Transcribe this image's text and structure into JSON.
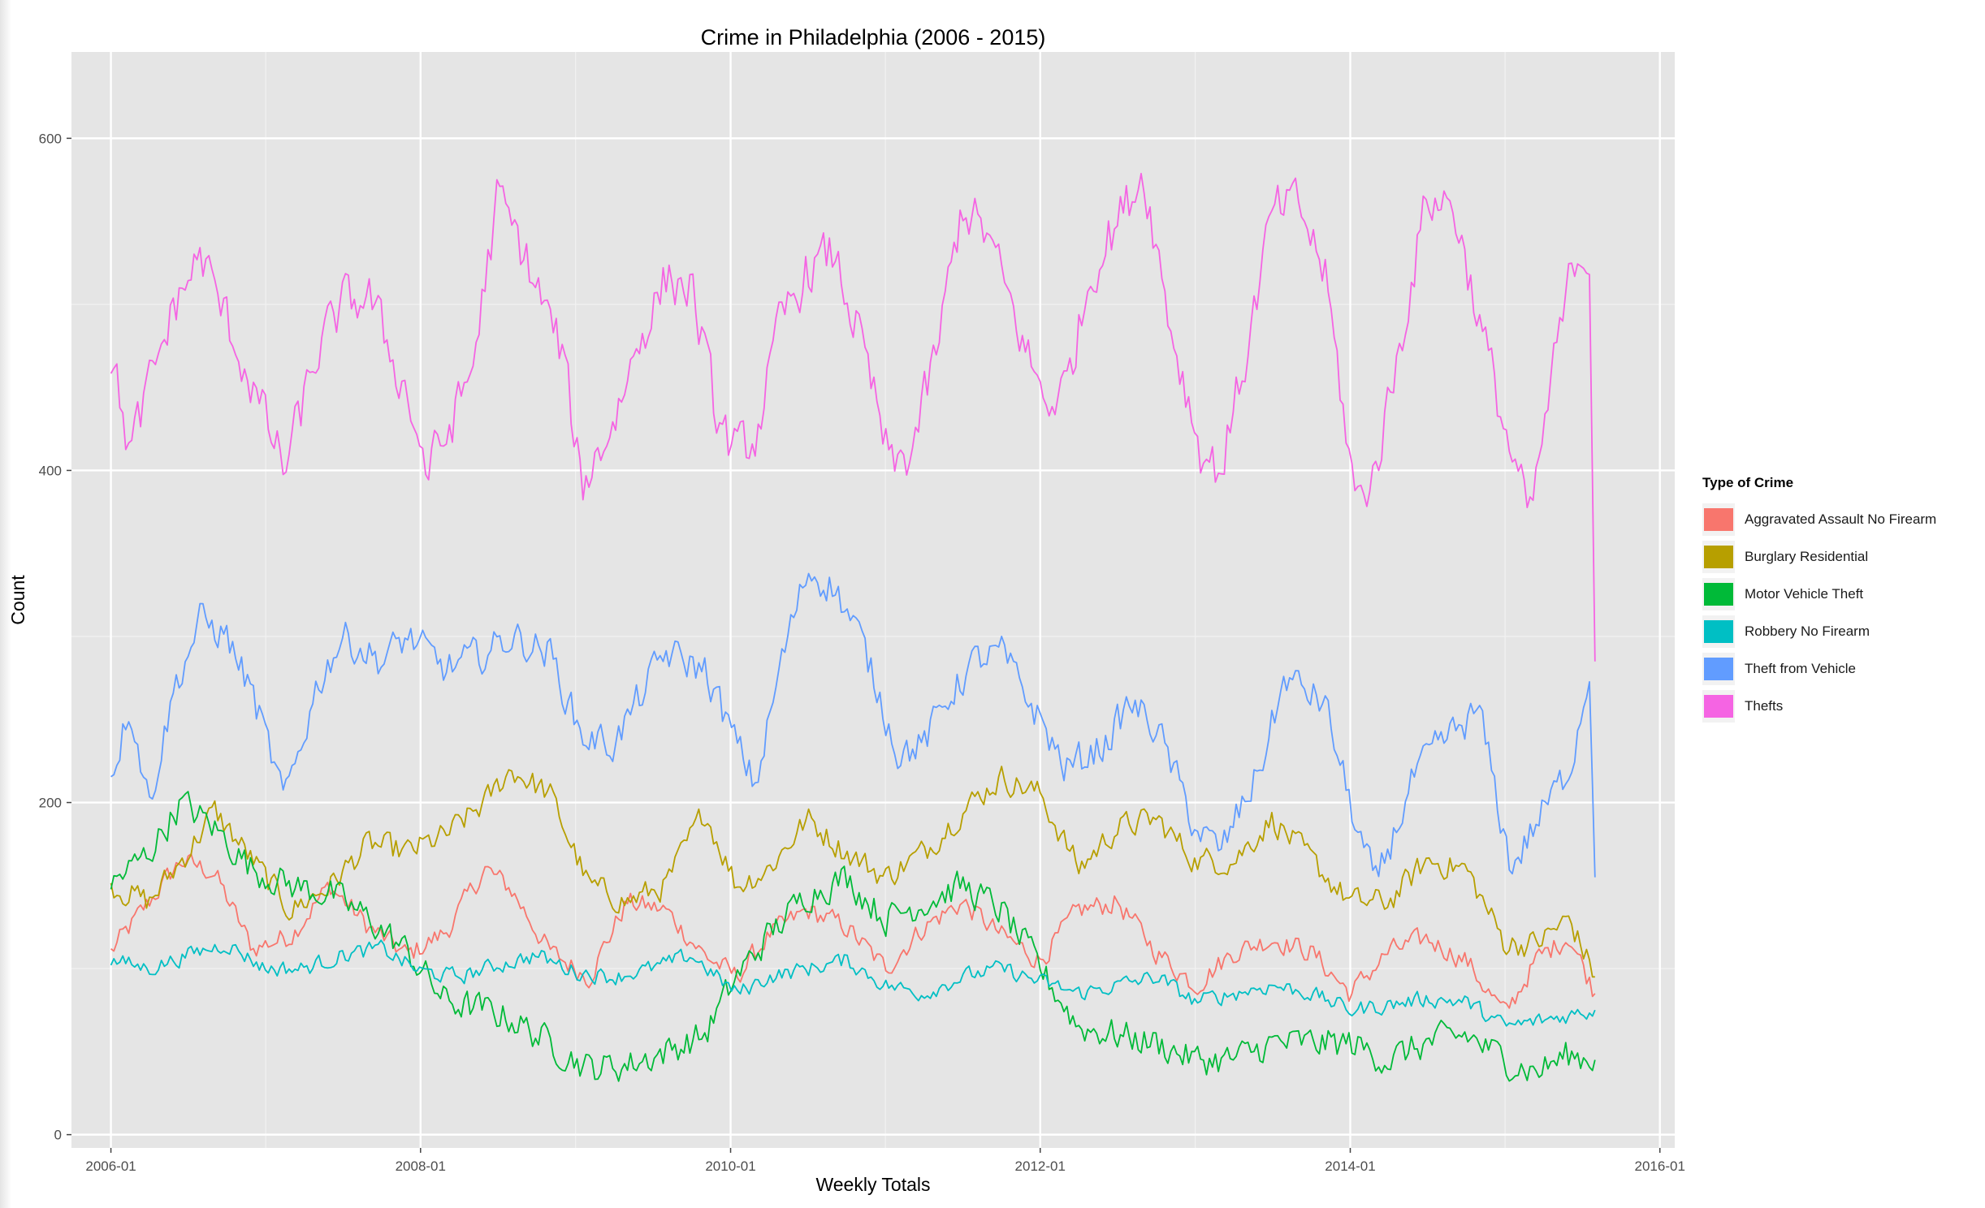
{
  "chart_data": {
    "type": "line",
    "title": "Crime in Philadelphia (2006 - 2015)",
    "xlabel": "Weekly Totals",
    "ylabel": "Count",
    "xlim": [
      "2005-09-30",
      "2016-02-05"
    ],
    "ylim": [
      -8,
      652
    ],
    "x_ticks": [
      {
        "value": "2006-01-01",
        "label": "2006-01"
      },
      {
        "value": "2008-01-01",
        "label": "2008-01"
      },
      {
        "value": "2010-01-01",
        "label": "2010-01"
      },
      {
        "value": "2012-01-01",
        "label": "2012-01"
      },
      {
        "value": "2014-01-01",
        "label": "2014-01"
      },
      {
        "value": "2016-01-01",
        "label": "2016-01"
      }
    ],
    "y_ticks": [
      0,
      200,
      400,
      600
    ],
    "grid": true,
    "legend": {
      "title": "Type of Crime",
      "position": "right"
    },
    "series": [
      {
        "name": "Aggravated Assault No Firearm",
        "color": "#F8766D",
        "points": [
          [
            "2006-01-01",
            110
          ],
          [
            "2006-04-01",
            140
          ],
          [
            "2006-06-15",
            165
          ],
          [
            "2006-09-01",
            158
          ],
          [
            "2006-12-01",
            112
          ],
          [
            "2007-03-01",
            120
          ],
          [
            "2007-06-01",
            150
          ],
          [
            "2007-09-01",
            125
          ],
          [
            "2007-12-01",
            108
          ],
          [
            "2008-03-01",
            122
          ],
          [
            "2008-06-01",
            160
          ],
          [
            "2008-08-01",
            148
          ],
          [
            "2008-11-01",
            110
          ],
          [
            "2009-02-01",
            95
          ],
          [
            "2009-05-01",
            140
          ],
          [
            "2009-08-01",
            135
          ],
          [
            "2009-11-01",
            108
          ],
          [
            "2010-01-15",
            95
          ],
          [
            "2010-04-01",
            120
          ],
          [
            "2010-07-01",
            135
          ],
          [
            "2010-10-01",
            125
          ],
          [
            "2011-01-01",
            100
          ],
          [
            "2011-04-01",
            125
          ],
          [
            "2011-07-01",
            140
          ],
          [
            "2011-10-01",
            120
          ],
          [
            "2012-01-01",
            105
          ],
          [
            "2012-04-01",
            135
          ],
          [
            "2012-07-01",
            140
          ],
          [
            "2012-10-01",
            110
          ],
          [
            "2013-01-01",
            90
          ],
          [
            "2013-04-01",
            110
          ],
          [
            "2013-07-01",
            118
          ],
          [
            "2013-10-01",
            110
          ],
          [
            "2014-01-01",
            85
          ],
          [
            "2014-04-01",
            110
          ],
          [
            "2014-07-01",
            118
          ],
          [
            "2014-10-01",
            105
          ],
          [
            "2015-01-01",
            72
          ],
          [
            "2015-03-15",
            105
          ],
          [
            "2015-06-01",
            120
          ],
          [
            "2015-08-01",
            85
          ]
        ]
      },
      {
        "name": "Burglary Residential",
        "color": "#B79F00",
        "points": [
          [
            "2006-01-01",
            150
          ],
          [
            "2006-04-01",
            140
          ],
          [
            "2006-07-01",
            170
          ],
          [
            "2006-09-01",
            195
          ],
          [
            "2006-12-01",
            165
          ],
          [
            "2007-03-01",
            135
          ],
          [
            "2007-06-01",
            150
          ],
          [
            "2007-09-01",
            175
          ],
          [
            "2007-12-01",
            170
          ],
          [
            "2008-03-01",
            180
          ],
          [
            "2008-06-01",
            200
          ],
          [
            "2008-08-01",
            220
          ],
          [
            "2008-11-01",
            205
          ],
          [
            "2009-02-01",
            150
          ],
          [
            "2009-05-01",
            140
          ],
          [
            "2009-08-01",
            150
          ],
          [
            "2009-11-01",
            195
          ],
          [
            "2010-01-15",
            150
          ],
          [
            "2010-04-01",
            160
          ],
          [
            "2010-07-01",
            190
          ],
          [
            "2010-10-01",
            170
          ],
          [
            "2011-01-01",
            155
          ],
          [
            "2011-04-01",
            170
          ],
          [
            "2011-07-01",
            195
          ],
          [
            "2011-10-01",
            215
          ],
          [
            "2012-01-01",
            205
          ],
          [
            "2012-04-01",
            160
          ],
          [
            "2012-07-01",
            185
          ],
          [
            "2012-10-01",
            190
          ],
          [
            "2013-01-01",
            165
          ],
          [
            "2013-04-01",
            165
          ],
          [
            "2013-07-01",
            190
          ],
          [
            "2013-10-01",
            165
          ],
          [
            "2014-01-01",
            140
          ],
          [
            "2014-04-01",
            140
          ],
          [
            "2014-07-01",
            165
          ],
          [
            "2014-10-01",
            160
          ],
          [
            "2015-01-01",
            115
          ],
          [
            "2015-03-15",
            115
          ],
          [
            "2015-06-01",
            130
          ],
          [
            "2015-08-01",
            95
          ]
        ]
      },
      {
        "name": "Motor Vehicle Theft",
        "color": "#00BA38",
        "points": [
          [
            "2006-01-01",
            150
          ],
          [
            "2006-04-01",
            170
          ],
          [
            "2006-06-15",
            200
          ],
          [
            "2006-09-01",
            185
          ],
          [
            "2006-12-01",
            160
          ],
          [
            "2007-03-01",
            150
          ],
          [
            "2007-06-01",
            145
          ],
          [
            "2007-09-01",
            130
          ],
          [
            "2007-12-01",
            110
          ],
          [
            "2008-03-01",
            80
          ],
          [
            "2008-06-01",
            75
          ],
          [
            "2008-08-01",
            70
          ],
          [
            "2008-11-01",
            55
          ],
          [
            "2009-02-01",
            40
          ],
          [
            "2009-05-01",
            42
          ],
          [
            "2009-08-01",
            50
          ],
          [
            "2009-11-01",
            60
          ],
          [
            "2010-01-15",
            95
          ],
          [
            "2010-04-01",
            120
          ],
          [
            "2010-07-01",
            145
          ],
          [
            "2010-10-01",
            155
          ],
          [
            "2011-01-01",
            130
          ],
          [
            "2011-04-01",
            140
          ],
          [
            "2011-07-01",
            150
          ],
          [
            "2011-10-01",
            135
          ],
          [
            "2012-01-01",
            100
          ],
          [
            "2012-04-01",
            65
          ],
          [
            "2012-07-01",
            60
          ],
          [
            "2012-10-01",
            55
          ],
          [
            "2013-01-01",
            45
          ],
          [
            "2013-04-01",
            45
          ],
          [
            "2013-07-01",
            55
          ],
          [
            "2013-10-01",
            55
          ],
          [
            "2014-01-01",
            55
          ],
          [
            "2014-04-01",
            45
          ],
          [
            "2014-07-01",
            55
          ],
          [
            "2014-10-01",
            60
          ],
          [
            "2015-01-01",
            45
          ],
          [
            "2015-03-15",
            38
          ],
          [
            "2015-06-01",
            48
          ],
          [
            "2015-08-01",
            45
          ]
        ]
      },
      {
        "name": "Robbery No Firearm",
        "color": "#00BFC4",
        "points": [
          [
            "2006-01-01",
            105
          ],
          [
            "2006-04-01",
            100
          ],
          [
            "2006-07-01",
            108
          ],
          [
            "2006-10-01",
            115
          ],
          [
            "2007-01-01",
            100
          ],
          [
            "2007-04-01",
            100
          ],
          [
            "2007-07-01",
            108
          ],
          [
            "2007-10-01",
            112
          ],
          [
            "2008-01-01",
            98
          ],
          [
            "2008-04-01",
            95
          ],
          [
            "2008-07-01",
            102
          ],
          [
            "2008-10-01",
            108
          ],
          [
            "2009-01-01",
            98
          ],
          [
            "2009-04-01",
            95
          ],
          [
            "2009-07-01",
            100
          ],
          [
            "2009-10-01",
            108
          ],
          [
            "2010-01-15",
            85
          ],
          [
            "2010-04-01",
            95
          ],
          [
            "2010-07-01",
            100
          ],
          [
            "2010-10-01",
            105
          ],
          [
            "2011-01-01",
            90
          ],
          [
            "2011-04-01",
            85
          ],
          [
            "2011-07-01",
            95
          ],
          [
            "2011-10-01",
            100
          ],
          [
            "2012-01-01",
            92
          ],
          [
            "2012-04-01",
            85
          ],
          [
            "2012-07-01",
            90
          ],
          [
            "2012-10-01",
            95
          ],
          [
            "2013-01-01",
            80
          ],
          [
            "2013-04-01",
            85
          ],
          [
            "2013-07-01",
            90
          ],
          [
            "2013-10-01",
            85
          ],
          [
            "2014-01-01",
            75
          ],
          [
            "2014-04-01",
            78
          ],
          [
            "2014-07-01",
            82
          ],
          [
            "2014-10-01",
            80
          ],
          [
            "2015-01-01",
            65
          ],
          [
            "2015-03-15",
            68
          ],
          [
            "2015-06-01",
            72
          ],
          [
            "2015-08-01",
            75
          ]
        ]
      },
      {
        "name": "Theft from Vehicle",
        "color": "#619CFF",
        "points": [
          [
            "2006-01-01",
            215
          ],
          [
            "2006-02-15",
            260
          ],
          [
            "2006-04-01",
            200
          ],
          [
            "2006-06-01",
            270
          ],
          [
            "2006-08-01",
            310
          ],
          [
            "2006-10-01",
            300
          ],
          [
            "2006-12-01",
            265
          ],
          [
            "2007-02-15",
            200
          ],
          [
            "2007-05-01",
            270
          ],
          [
            "2007-07-01",
            300
          ],
          [
            "2007-10-01",
            285
          ],
          [
            "2007-12-01",
            300
          ],
          [
            "2008-03-01",
            280
          ],
          [
            "2008-06-01",
            290
          ],
          [
            "2008-08-01",
            300
          ],
          [
            "2008-11-01",
            290
          ],
          [
            "2009-01-15",
            240
          ],
          [
            "2009-04-01",
            235
          ],
          [
            "2009-06-15",
            270
          ],
          [
            "2009-08-01",
            290
          ],
          [
            "2009-11-01",
            280
          ],
          [
            "2010-01-15",
            235
          ],
          [
            "2010-03-01",
            210
          ],
          [
            "2010-05-01",
            285
          ],
          [
            "2010-07-01",
            340
          ],
          [
            "2010-09-01",
            330
          ],
          [
            "2010-11-01",
            300
          ],
          [
            "2011-02-01",
            230
          ],
          [
            "2011-04-01",
            235
          ],
          [
            "2011-06-01",
            265
          ],
          [
            "2011-08-01",
            285
          ],
          [
            "2011-10-01",
            290
          ],
          [
            "2012-01-01",
            250
          ],
          [
            "2012-03-01",
            220
          ],
          [
            "2012-06-01",
            235
          ],
          [
            "2012-08-01",
            260
          ],
          [
            "2012-10-01",
            245
          ],
          [
            "2013-01-01",
            185
          ],
          [
            "2013-03-01",
            170
          ],
          [
            "2013-06-01",
            220
          ],
          [
            "2013-08-01",
            275
          ],
          [
            "2013-11-01",
            260
          ],
          [
            "2014-01-15",
            185
          ],
          [
            "2014-03-01",
            150
          ],
          [
            "2014-06-01",
            215
          ],
          [
            "2014-08-01",
            235
          ],
          [
            "2014-11-01",
            255
          ],
          [
            "2015-01-15",
            160
          ],
          [
            "2015-04-01",
            195
          ],
          [
            "2015-06-01",
            220
          ],
          [
            "2015-07-20",
            280
          ],
          [
            "2015-08-01",
            155
          ]
        ]
      },
      {
        "name": "Thefts",
        "color": "#F564E3",
        "points": [
          [
            "2006-01-01",
            470
          ],
          [
            "2006-02-15",
            410
          ],
          [
            "2006-04-01",
            450
          ],
          [
            "2006-06-01",
            500
          ],
          [
            "2006-08-01",
            530
          ],
          [
            "2006-10-01",
            490
          ],
          [
            "2006-12-01",
            450
          ],
          [
            "2007-02-15",
            400
          ],
          [
            "2007-05-01",
            470
          ],
          [
            "2007-07-01",
            500
          ],
          [
            "2007-09-01",
            505
          ],
          [
            "2007-12-01",
            445
          ],
          [
            "2008-01-15",
            400
          ],
          [
            "2008-03-01",
            420
          ],
          [
            "2008-05-01",
            460
          ],
          [
            "2008-07-01",
            565
          ],
          [
            "2008-09-01",
            530
          ],
          [
            "2008-12-01",
            470
          ],
          [
            "2009-01-15",
            390
          ],
          [
            "2009-04-01",
            430
          ],
          [
            "2009-06-01",
            480
          ],
          [
            "2009-08-01",
            515
          ],
          [
            "2009-10-01",
            510
          ],
          [
            "2009-12-01",
            430
          ],
          [
            "2010-01-15",
            410
          ],
          [
            "2010-03-01",
            420
          ],
          [
            "2010-05-01",
            490
          ],
          [
            "2010-07-01",
            520
          ],
          [
            "2010-09-01",
            530
          ],
          [
            "2010-11-01",
            480
          ],
          [
            "2011-01-15",
            400
          ],
          [
            "2011-03-01",
            410
          ],
          [
            "2011-05-01",
            470
          ],
          [
            "2011-07-01",
            560
          ],
          [
            "2011-09-01",
            540
          ],
          [
            "2011-12-01",
            470
          ],
          [
            "2012-01-15",
            440
          ],
          [
            "2012-03-01",
            450
          ],
          [
            "2012-05-01",
            520
          ],
          [
            "2012-07-01",
            550
          ],
          [
            "2012-09-01",
            580
          ],
          [
            "2012-11-01",
            490
          ],
          [
            "2013-01-15",
            410
          ],
          [
            "2013-03-01",
            400
          ],
          [
            "2013-05-01",
            470
          ],
          [
            "2013-07-01",
            555
          ],
          [
            "2013-09-01",
            560
          ],
          [
            "2013-11-01",
            520
          ],
          [
            "2014-01-15",
            380
          ],
          [
            "2014-03-01",
            400
          ],
          [
            "2014-05-01",
            480
          ],
          [
            "2014-07-01",
            565
          ],
          [
            "2014-09-01",
            560
          ],
          [
            "2014-11-01",
            490
          ],
          [
            "2015-01-15",
            410
          ],
          [
            "2015-03-01",
            370
          ],
          [
            "2015-05-01",
            470
          ],
          [
            "2015-06-15",
            530
          ],
          [
            "2015-07-20",
            530
          ],
          [
            "2015-08-01",
            285
          ]
        ]
      }
    ]
  }
}
